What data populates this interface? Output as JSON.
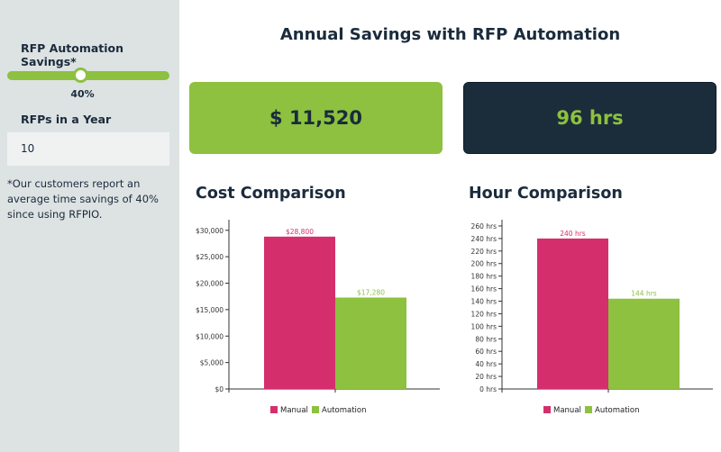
{
  "sidebar": {
    "savings_label": "RFP Automation Savings*",
    "savings_value": "40%",
    "savings_fraction": 0.4,
    "rfps_label": "RFPs in a Year",
    "rfps_value": "10",
    "note": "*Our customers report an average time savings of 40% since using RFPIO."
  },
  "main": {
    "title": "Annual Savings with RFP Automation",
    "cost_card": "$ 11,520",
    "hours_card": "96 hrs"
  },
  "colors": {
    "manual": "#d42f6c",
    "automation": "#8dc13f",
    "dark": "#1b2d3b"
  },
  "chart_data": [
    {
      "type": "bar",
      "title": "Cost Comparison",
      "series": [
        {
          "name": "Manual",
          "value": 28800,
          "label": "$28,800"
        },
        {
          "name": "Automation",
          "value": 17280,
          "label": "$17,280"
        }
      ],
      "ylim": [
        0,
        32000
      ],
      "ticks": [
        0,
        5000,
        10000,
        15000,
        20000,
        25000,
        30000
      ],
      "tick_labels": [
        "$0",
        "$5,000",
        "$10,000",
        "$15,000",
        "$20,000",
        "$25,000",
        "$30,000"
      ],
      "legend": "bottom"
    },
    {
      "type": "bar",
      "title": "Hour Comparison",
      "series": [
        {
          "name": "Manual",
          "value": 240,
          "label": "240 hrs"
        },
        {
          "name": "Automation",
          "value": 144,
          "label": "144 hrs"
        }
      ],
      "ylim": [
        0,
        270
      ],
      "ticks": [
        0,
        20,
        40,
        60,
        80,
        100,
        120,
        140,
        160,
        180,
        200,
        220,
        240,
        260
      ],
      "tick_labels": [
        "0 hrs",
        "20 hrs",
        "40 hrs",
        "60 hrs",
        "80 hrs",
        "100 hrs",
        "120 hrs",
        "140 hrs",
        "160 hrs",
        "180 hrs",
        "200 hrs",
        "220 hrs",
        "240 hrs",
        "260 hrs"
      ],
      "legend": "bottom"
    }
  ]
}
